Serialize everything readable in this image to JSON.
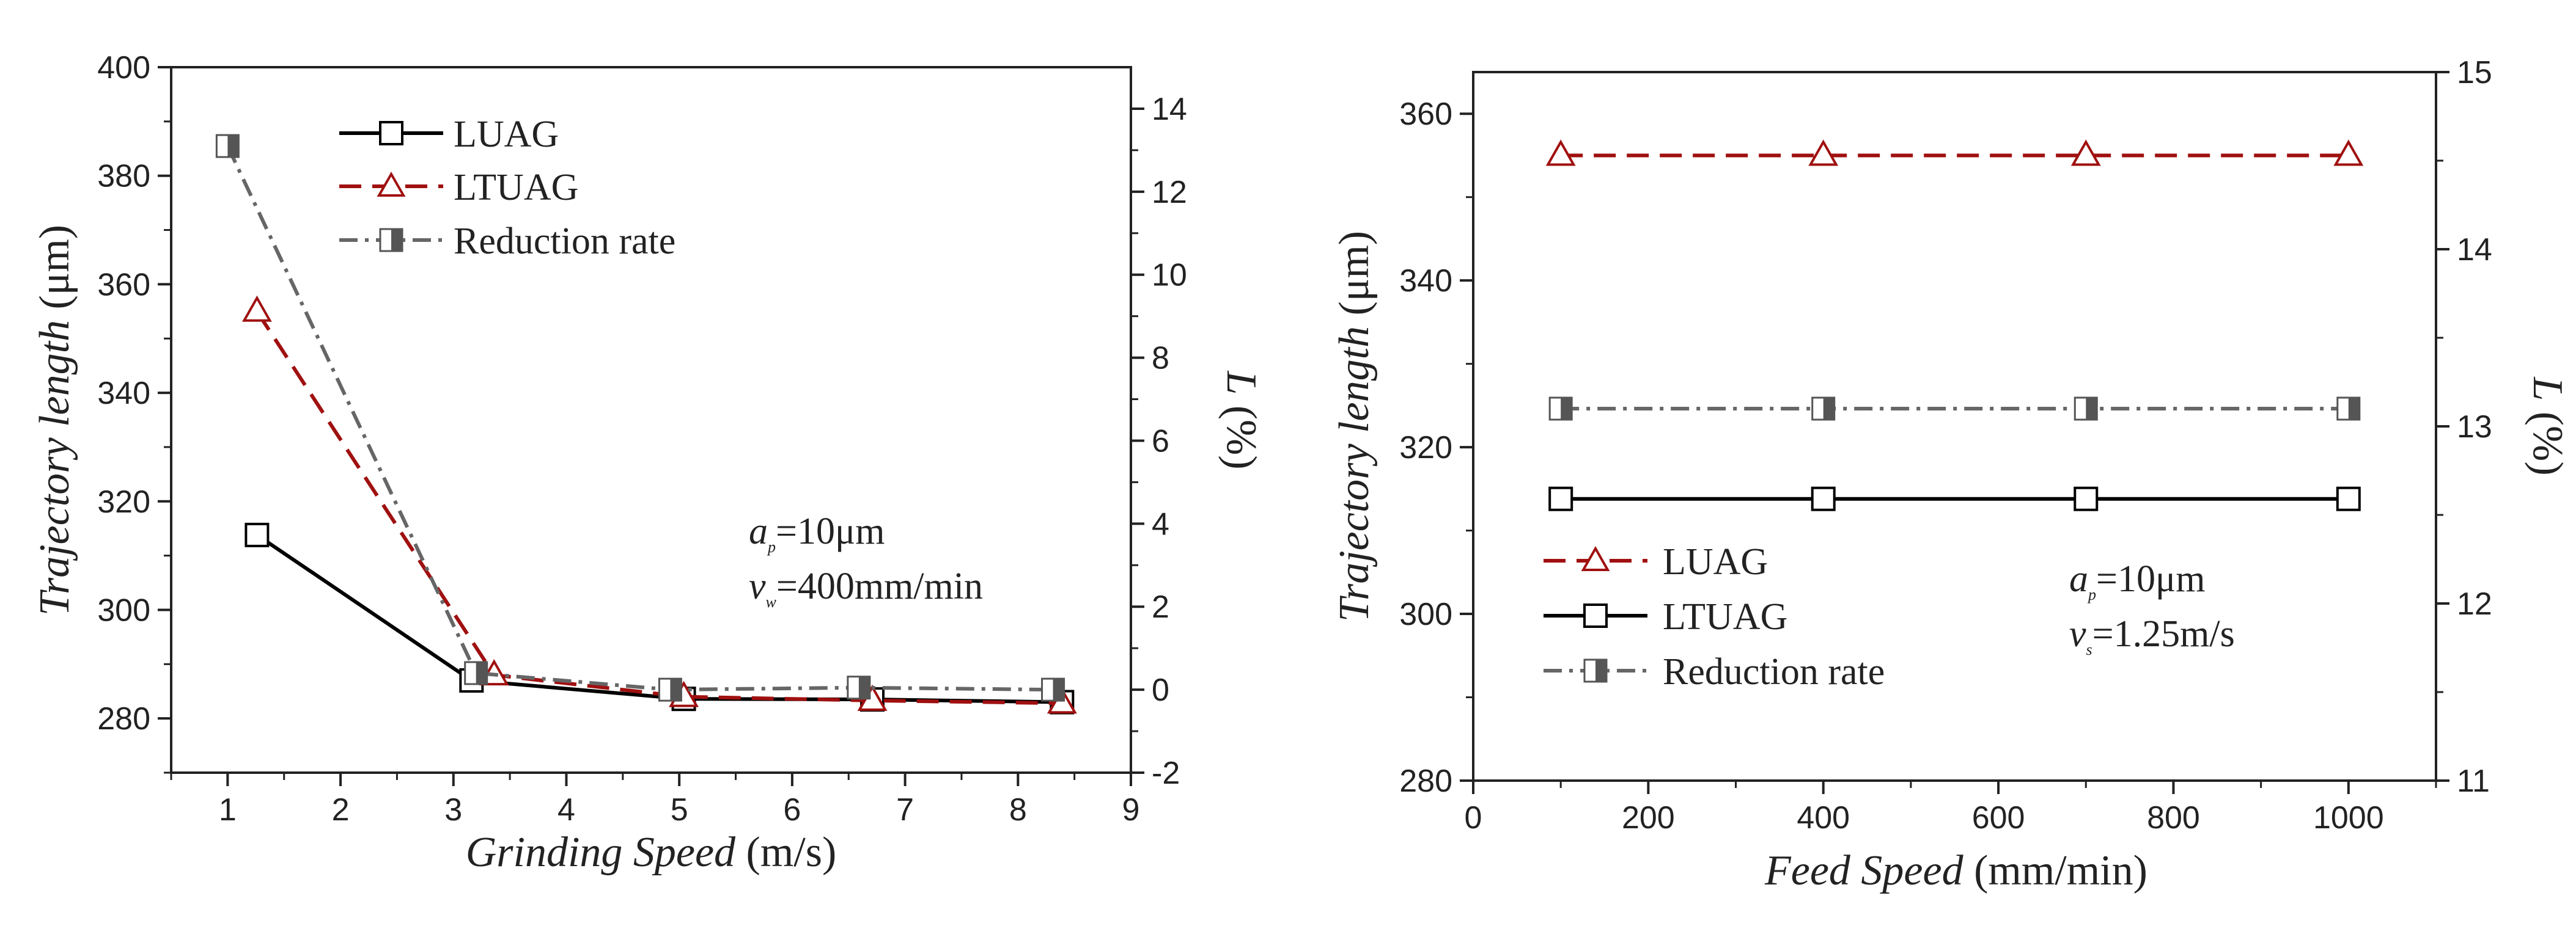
{
  "chart_data": [
    {
      "type": "line",
      "x_axis": {
        "title_italic": "Grinding Speed",
        "title_unit": " (m/s)",
        "min": 0.5,
        "max": 9,
        "ticks": [
          "1",
          "2",
          "3",
          "4",
          "5",
          "6",
          "7",
          "8",
          "9"
        ]
      },
      "y_left": {
        "title_italic": "Trajectory length",
        "title_unit": " (μm)",
        "min": 270,
        "max": 400,
        "ticks": [
          "280",
          "300",
          "320",
          "340",
          "360",
          "380",
          "400"
        ]
      },
      "y_right": {
        "title_italic": "L",
        "title_unit": " (%)",
        "min": -2,
        "max": 15,
        "ticks": [
          "-2",
          "0",
          "2",
          "4",
          "6",
          "8",
          "10",
          "12",
          "14"
        ]
      },
      "series": [
        {
          "name": "LUAG",
          "axis": "left",
          "color": "#000000",
          "dash": "solid",
          "marker": "square-open",
          "x": [
            1.26,
            3.16,
            5.04,
            6.71,
            8.39
          ],
          "values": [
            313.8,
            287,
            283.6,
            283.5,
            283.0
          ]
        },
        {
          "name": "LTUAG",
          "axis": "left",
          "color": "#a01010",
          "dash": "dash",
          "marker": "triangle-open",
          "x": [
            1.26,
            3.36,
            5.04,
            6.71,
            8.39
          ],
          "values": [
            355,
            288,
            284,
            283.3,
            282.8
          ]
        },
        {
          "name": "Reduction rate",
          "axis": "right",
          "color": "#666666",
          "dash": "dashdot",
          "marker": "square-half",
          "x": [
            1.0,
            3.2,
            4.92,
            6.59,
            8.31
          ],
          "values": [
            13.1,
            0.4,
            0.0,
            0.05,
            0.0
          ]
        }
      ],
      "legend": [
        "LUAG",
        "LTUAG",
        "Reduction rate"
      ],
      "annotation": {
        "a_symbol": "a",
        "a_sub": "p",
        "a_value": "=10μm",
        "v_symbol": "v",
        "v_sub": "w",
        "v_value": "=400mm/min"
      }
    },
    {
      "type": "line",
      "x_axis": {
        "title_italic": "Feed Speed",
        "title_unit": " (mm/min)",
        "min": 0,
        "max": 1100,
        "ticks": [
          "0",
          "200",
          "400",
          "600",
          "800",
          "1000"
        ]
      },
      "y_left": {
        "title_italic": "Trajectory length",
        "title_unit": " (μm)",
        "min": 280,
        "max": 365,
        "ticks": [
          "280",
          "300",
          "320",
          "340",
          "360"
        ]
      },
      "y_right": {
        "title_italic": "L",
        "title_unit": " (%)",
        "min": 11,
        "max": 15,
        "ticks": [
          "11",
          "12",
          "13",
          "14",
          "15"
        ]
      },
      "series": [
        {
          "name": "LUAG",
          "axis": "left",
          "color": "#a01010",
          "dash": "dash",
          "marker": "triangle-open",
          "x": [
            100,
            400,
            700,
            1000
          ],
          "values": [
            355,
            355,
            355,
            355
          ]
        },
        {
          "name": "LTUAG",
          "axis": "left",
          "color": "#000000",
          "dash": "solid",
          "marker": "square-open",
          "x": [
            100,
            400,
            700,
            1000
          ],
          "values": [
            313.8,
            313.8,
            313.8,
            313.8
          ]
        },
        {
          "name": "Reduction rate",
          "axis": "right",
          "color": "#666666",
          "dash": "dashdot",
          "marker": "square-half",
          "x": [
            100,
            400,
            700,
            1000
          ],
          "values": [
            13.1,
            13.1,
            13.1,
            13.1
          ]
        }
      ],
      "legend": [
        "LUAG",
        "LTUAG",
        "Reduction rate"
      ],
      "annotation": {
        "a_symbol": "a",
        "a_sub": "p",
        "a_value": "=10μm",
        "v_symbol": "v",
        "v_sub": "s",
        "v_value": "=1.25m/s"
      }
    }
  ]
}
